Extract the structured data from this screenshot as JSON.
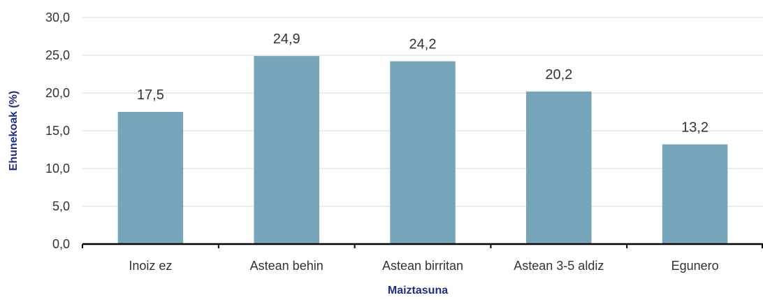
{
  "chart_data": {
    "type": "bar",
    "title": "",
    "xlabel": "Maiztasuna",
    "ylabel": "Ehunekoak (%)",
    "categories": [
      "Inoiz ez",
      "Astean behin",
      "Astean birritan",
      "Astean 3-5 aldiz",
      "Egunero"
    ],
    "values": [
      17.5,
      24.9,
      24.2,
      20.2,
      13.2
    ],
    "value_labels": [
      "17,5",
      "24,9",
      "24,2",
      "20,2",
      "13,2"
    ],
    "ylim": [
      0,
      30
    ],
    "yticks": [
      0,
      5,
      10,
      15,
      20,
      25,
      30
    ],
    "ytick_labels": [
      "0,0",
      "5,0",
      "10,0",
      "15,0",
      "20,0",
      "25,0",
      "30,0"
    ],
    "grid": true,
    "legend": "none",
    "bar_color": "#76a4b9",
    "grid_color": "#d9d9d9",
    "axis_title_color": "#1f2e8c"
  }
}
